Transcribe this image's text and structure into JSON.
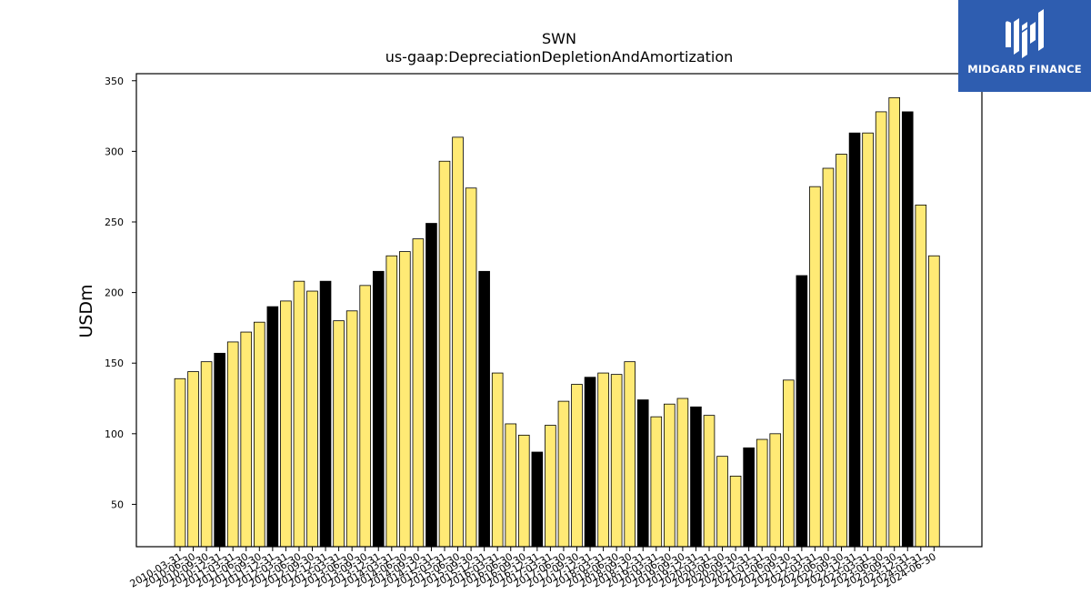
{
  "chart_data": {
    "type": "bar",
    "title": "SWN",
    "subtitle": "us-gaap:DepreciationDepletionAndAmortization",
    "ylabel": "USDm",
    "xlabel": "",
    "ylim": [
      20,
      355
    ],
    "yticks": [
      50,
      100,
      150,
      200,
      250,
      300,
      350
    ],
    "grid": false,
    "colors": {
      "bar": "#ffea75",
      "highlight": "#000000",
      "edge": "#000000"
    },
    "categories": [
      "2010-03-31",
      "2010-06-30",
      "2010-09-30",
      "2010-12-31",
      "2011-03-31",
      "2011-06-30",
      "2011-09-30",
      "2011-12-31",
      "2012-03-31",
      "2012-06-30",
      "2012-09-30",
      "2012-12-31",
      "2013-03-31",
      "2013-06-30",
      "2013-09-30",
      "2013-12-31",
      "2014-03-31",
      "2014-06-30",
      "2014-09-30",
      "2014-12-31",
      "2015-03-31",
      "2015-06-30",
      "2015-09-30",
      "2015-12-31",
      "2016-03-31",
      "2016-06-30",
      "2016-09-30",
      "2016-12-31",
      "2017-03-31",
      "2017-06-30",
      "2017-09-30",
      "2017-12-31",
      "2018-03-31",
      "2018-06-30",
      "2018-09-30",
      "2018-12-31",
      "2019-03-31",
      "2019-06-30",
      "2019-09-30",
      "2019-12-31",
      "2020-03-31",
      "2020-06-30",
      "2020-09-30",
      "2020-12-31",
      "2021-03-31",
      "2021-06-30",
      "2021-09-30",
      "2021-12-31",
      "2022-03-31",
      "2022-06-30",
      "2022-09-30",
      "2022-12-31",
      "2023-03-31",
      "2023-06-30",
      "2023-09-30",
      "2023-12-31",
      "2024-03-31",
      "2024-06-30"
    ],
    "values": [
      139,
      144,
      151,
      157,
      165,
      172,
      179,
      190,
      194,
      208,
      201,
      208,
      180,
      187,
      205,
      215,
      226,
      229,
      238,
      249,
      293,
      310,
      274,
      215,
      143,
      107,
      99,
      87,
      106,
      123,
      135,
      140,
      143,
      142,
      151,
      124,
      112,
      121,
      125,
      119,
      113,
      84,
      70,
      90,
      96,
      100,
      138,
      212,
      275,
      288,
      298,
      313,
      313,
      328,
      338,
      328,
      262,
      226
    ],
    "highlight": [
      false,
      false,
      false,
      true,
      false,
      false,
      false,
      true,
      false,
      false,
      false,
      true,
      false,
      false,
      false,
      true,
      false,
      false,
      false,
      true,
      false,
      false,
      false,
      true,
      false,
      false,
      false,
      true,
      false,
      false,
      false,
      true,
      false,
      false,
      false,
      true,
      false,
      false,
      false,
      true,
      false,
      false,
      false,
      true,
      false,
      false,
      false,
      true,
      false,
      false,
      false,
      true,
      false,
      false,
      false,
      true,
      false,
      false
    ]
  },
  "logo": {
    "text": "MIDGARD FINANCE",
    "icon": "midgard-logo-icon",
    "background": "#2e5db0"
  }
}
